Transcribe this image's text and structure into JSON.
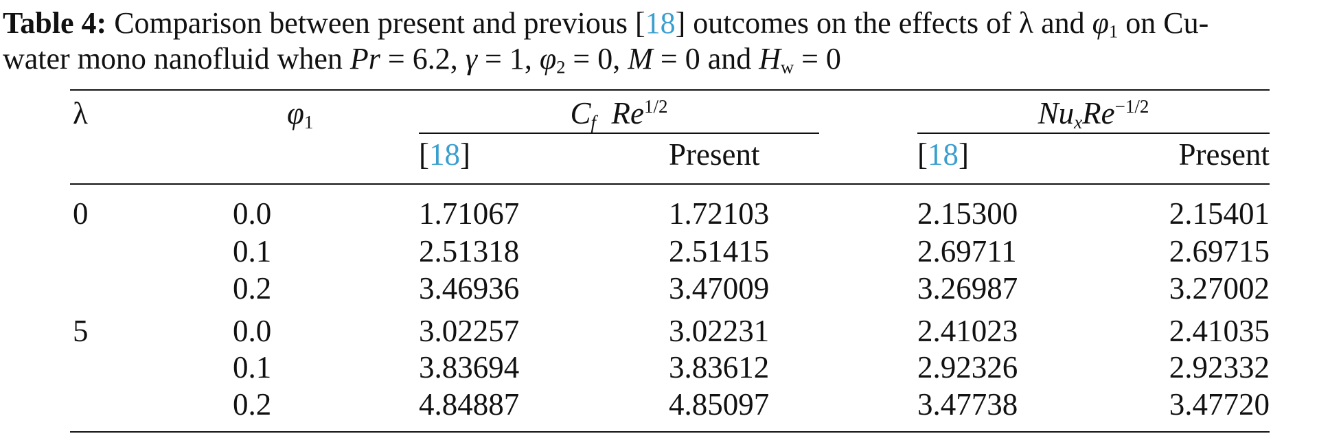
{
  "caption": {
    "label": "Table 4:",
    "segments": [
      "Comparison between present and previous [",
      "18",
      "] outcomes on the effects of ",
      "λ",
      " and ",
      "φ",
      "1",
      " on Cu-",
      "water mono nanofluid when ",
      "Pr",
      " = 6.2, ",
      "γ",
      " = 1, ",
      "φ",
      "2",
      " = 0, ",
      "M",
      " = 0 and ",
      "H",
      "w",
      " = 0"
    ]
  },
  "table": {
    "header": {
      "lambda": "λ",
      "phi": [
        "φ",
        "1"
      ],
      "group1": [
        "C",
        "f",
        "Re",
        "1/2"
      ],
      "group2": [
        "Nu",
        "x",
        "Re",
        "−1/2"
      ],
      "sub": [
        [
          "[",
          "18",
          "]"
        ],
        "Present",
        [
          "[",
          "18",
          "]"
        ],
        "Present"
      ]
    },
    "rows": [
      [
        "0",
        "0.0",
        "1.71067",
        "1.72103",
        "2.15300",
        "2.15401"
      ],
      [
        null,
        "0.1",
        "2.51318",
        "2.51415",
        "2.69711",
        "2.69715"
      ],
      [
        null,
        "0.2",
        "3.46936",
        "3.47009",
        "3.26987",
        "3.27002"
      ],
      [
        "5",
        "0.0",
        "3.02257",
        "3.02231",
        "2.41023",
        "2.41035"
      ],
      [
        null,
        "0.1",
        "3.83694",
        "3.83612",
        "2.92326",
        "2.92332"
      ],
      [
        null,
        "0.2",
        "4.84887",
        "4.85097",
        "3.47738",
        "3.47720"
      ]
    ]
  }
}
